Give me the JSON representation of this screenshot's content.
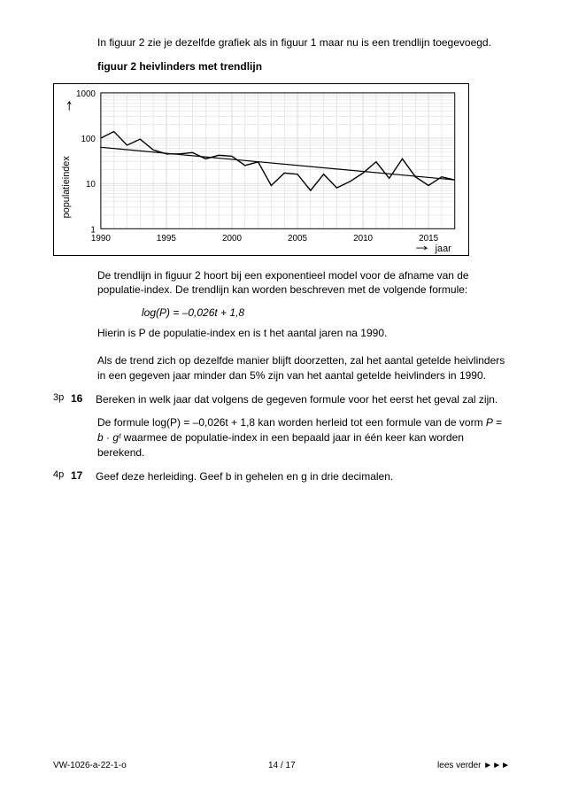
{
  "intro1": "In figuur 2 zie je dezelfde grafiek als in figuur 1 maar nu is een trendlijn toegevoegd.",
  "fig_caption": "figuur 2  heivlinders met trendlijn",
  "chart": {
    "type": "line",
    "xlim": [
      1990,
      2017
    ],
    "xtick_start": 1990,
    "xtick_step": 5,
    "xtick_labels": [
      "1990",
      "1995",
      "2000",
      "2005",
      "2010",
      "2015"
    ],
    "xlabel": "jaar",
    "xlabel_arrow": true,
    "yscale": "log",
    "ylim": [
      1,
      1000
    ],
    "yticks": [
      1,
      10,
      100,
      1000
    ],
    "ytick_labels": [
      "1",
      "10",
      "100",
      "1000"
    ],
    "ylabel": "populatieindex",
    "ylabel_arrow": true,
    "background_color": "#ffffff",
    "grid_color": "#cccccc",
    "axis_color": "#000000",
    "data_line": {
      "color": "#000000",
      "width": 1.4,
      "points": [
        [
          1990,
          100
        ],
        [
          1991,
          140
        ],
        [
          1992,
          70
        ],
        [
          1993,
          95
        ],
        [
          1994,
          55
        ],
        [
          1995,
          45
        ],
        [
          1996,
          45
        ],
        [
          1997,
          48
        ],
        [
          1998,
          35
        ],
        [
          1999,
          42
        ],
        [
          2000,
          40
        ],
        [
          2001,
          25
        ],
        [
          2002,
          30
        ],
        [
          2003,
          9
        ],
        [
          2004,
          17
        ],
        [
          2005,
          16
        ],
        [
          2006,
          7
        ],
        [
          2007,
          16
        ],
        [
          2008,
          8
        ],
        [
          2009,
          11
        ],
        [
          2010,
          17
        ],
        [
          2011,
          30
        ],
        [
          2012,
          13
        ],
        [
          2013,
          35
        ],
        [
          2014,
          14
        ],
        [
          2015,
          9
        ],
        [
          2016,
          14
        ],
        [
          2017,
          12
        ]
      ]
    },
    "trend_line": {
      "color": "#000000",
      "width": 1.2,
      "start": [
        1990,
        63
      ],
      "end": [
        2017,
        12
      ]
    },
    "label_fontsize": 11,
    "tick_fontsize": 10
  },
  "para2": "De trendlijn in figuur 2 hoort bij een exponentieel model voor de afname van de populatie-index. De trendlijn kan worden beschreven met de volgende formule:",
  "formula": "log(P) = –0,026t + 1,8",
  "para3": "Hierin is P de populatie-index en is t het aantal jaren na 1990.",
  "para4": "Als de trend zich op dezelfde manier blijft doorzetten, zal het aantal getelde heivlinders in een gegeven jaar minder dan 5% zijn van het aantal getelde heivlinders in 1990.",
  "q16": {
    "points": "3p",
    "num": "16",
    "text": "Bereken in welk jaar dat volgens de gegeven formule voor het eerst het geval zal zijn."
  },
  "para5_a": "De formule log(P) = –0,026t + 1,8 kan worden herleid tot een formule van de vorm ",
  "para5_b": "P = b · gᵗ",
  "para5_c": " waarmee de populatie-index in een bepaald jaar in één keer kan worden berekend.",
  "q17": {
    "points": "4p",
    "num": "17",
    "text": "Geef deze herleiding. Geef b in gehelen en g in drie decimalen."
  },
  "footer": {
    "left": "VW-1026-a-22-1-o",
    "center": "14 / 17",
    "right": "lees verder ►►►"
  }
}
